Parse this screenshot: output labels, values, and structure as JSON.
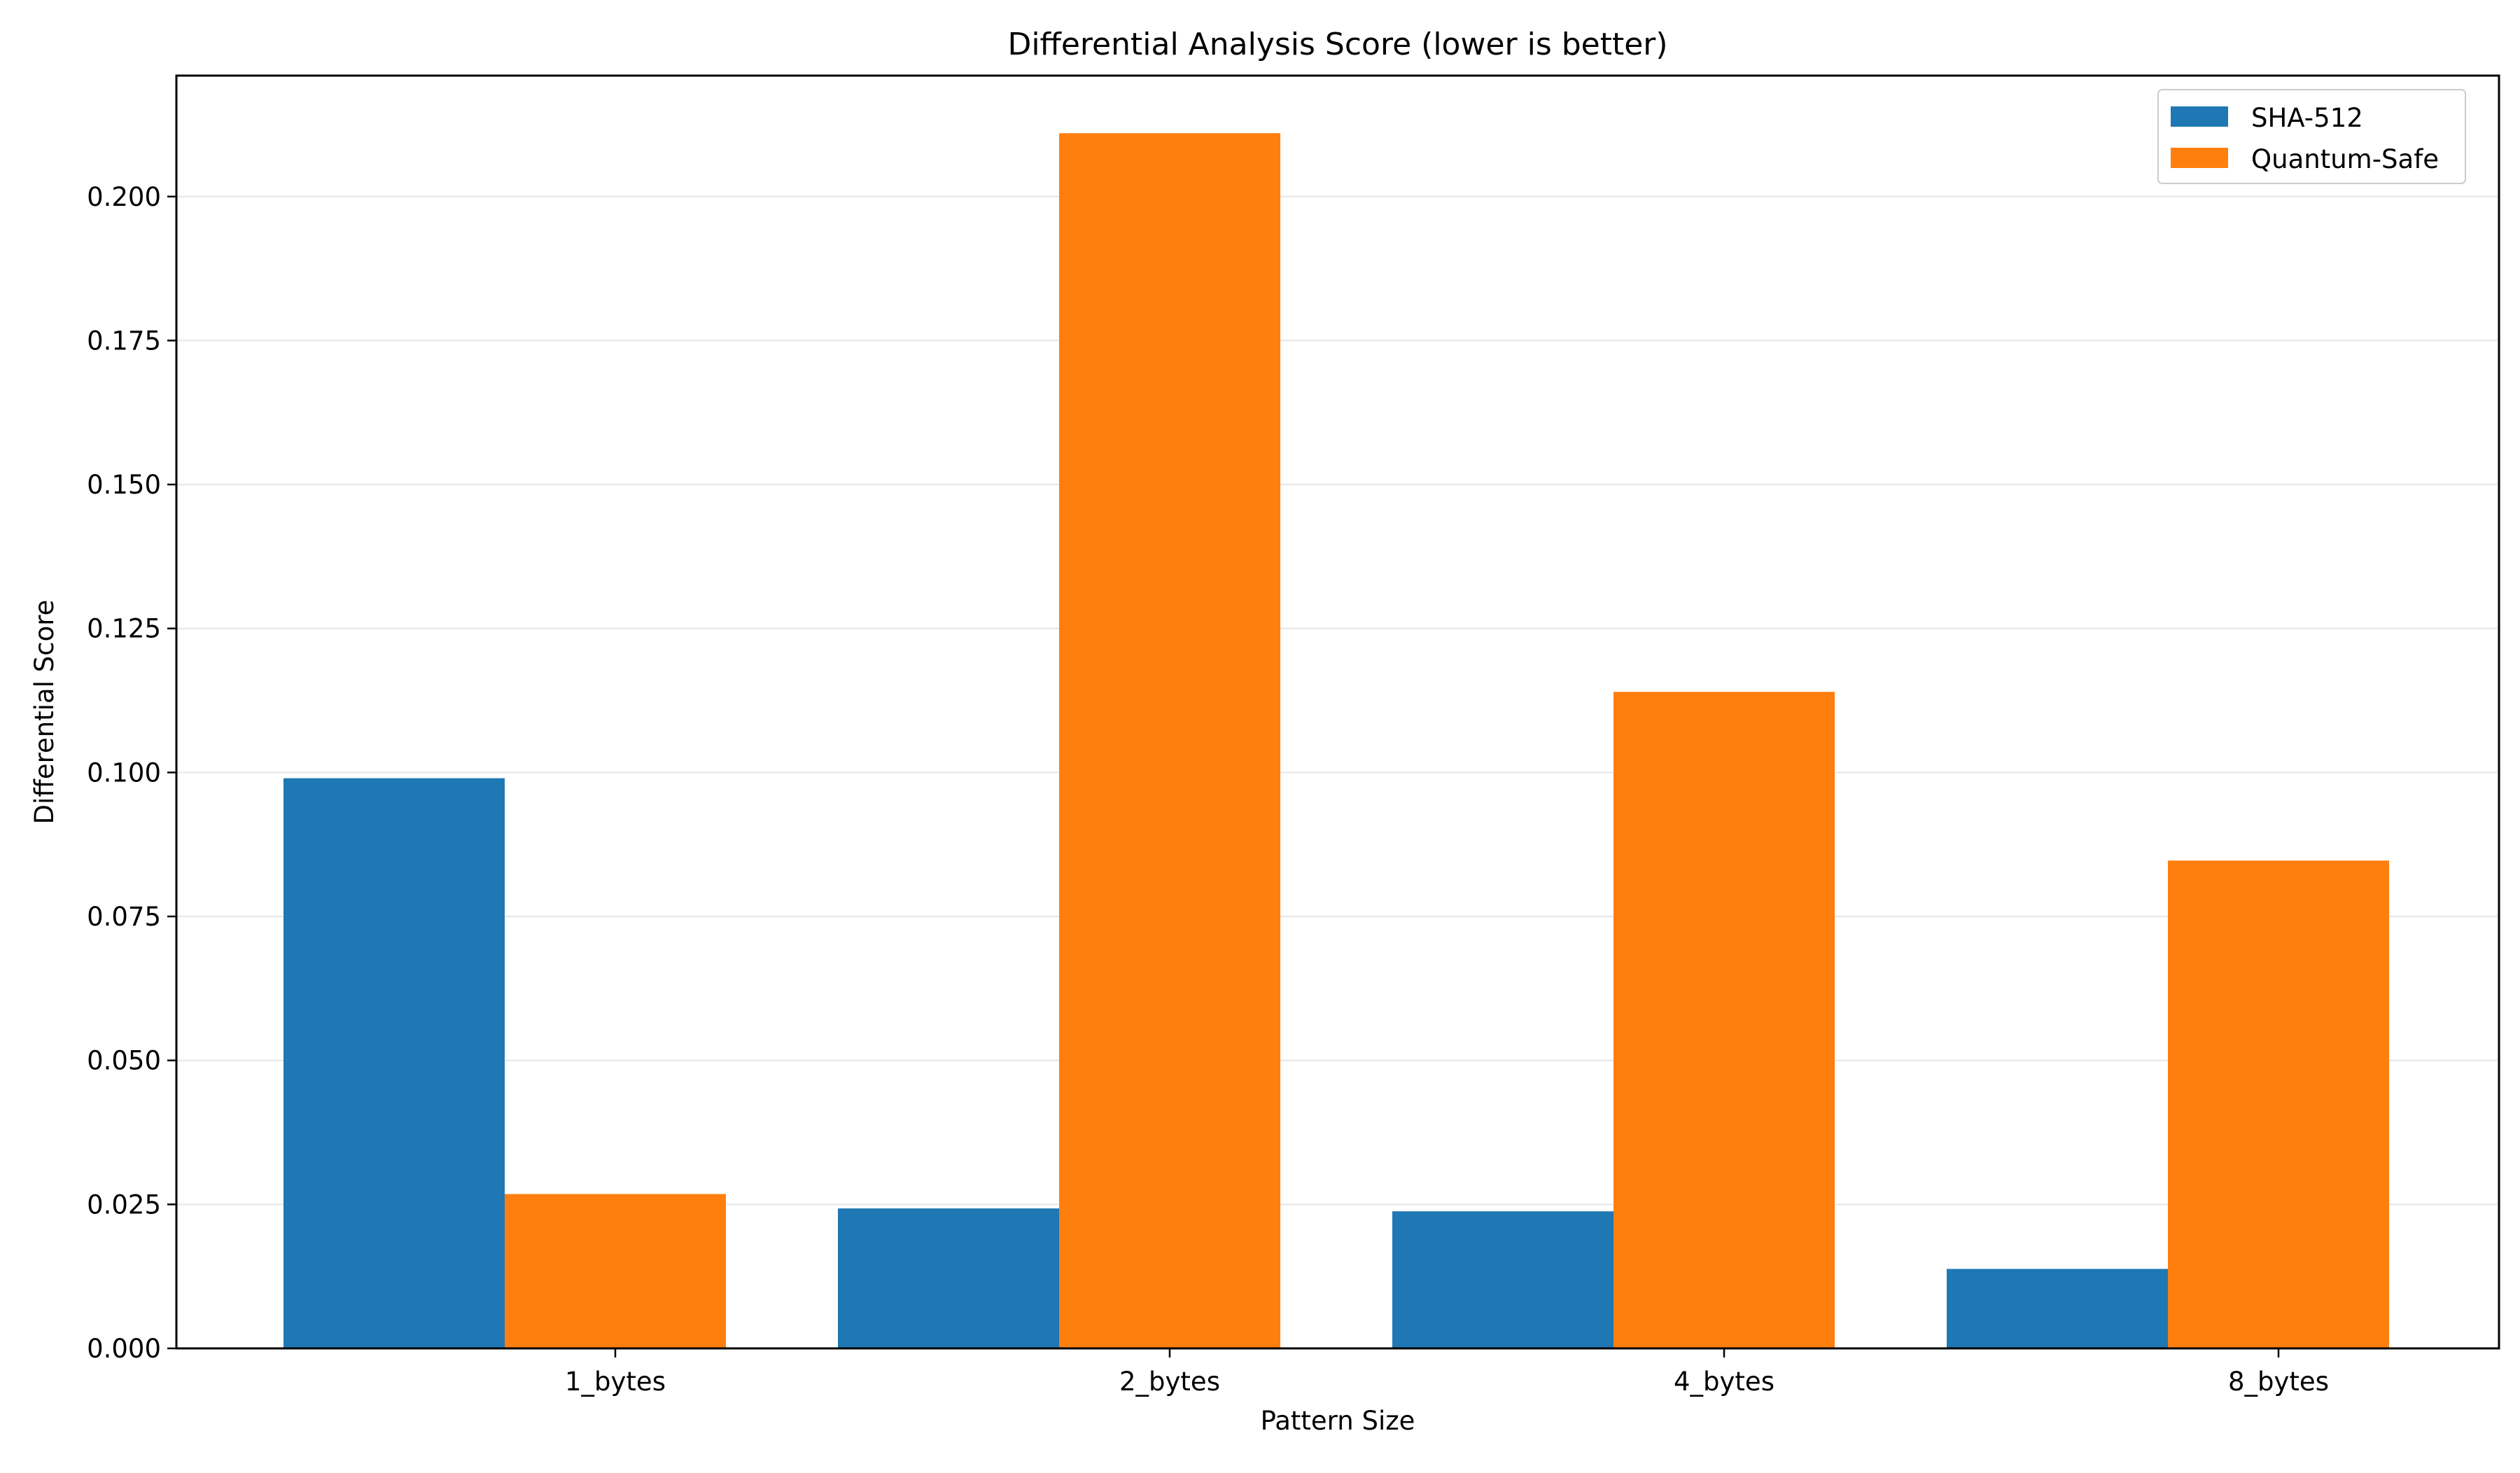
{
  "chart_data": {
    "type": "bar",
    "title": "Differential Analysis Score (lower is better)",
    "xlabel": "Pattern Size",
    "ylabel": "Differential Score",
    "categories": [
      "1_bytes",
      "2_bytes",
      "4_bytes",
      "8_bytes"
    ],
    "series": [
      {
        "name": "SHA-512",
        "color": "#1f77b4",
        "values": [
          0.099,
          0.0243,
          0.0238,
          0.0138
        ]
      },
      {
        "name": "Quantum-Safe",
        "color": "#ff7f0e",
        "values": [
          0.0268,
          0.211,
          0.114,
          0.0847
        ]
      }
    ],
    "ylim": [
      0,
      0.221
    ],
    "yticks": [
      "0.000",
      "0.025",
      "0.050",
      "0.075",
      "0.100",
      "0.125",
      "0.150",
      "0.175",
      "0.200"
    ],
    "ytick_values": [
      0,
      0.025,
      0.05,
      0.075,
      0.1,
      0.125,
      0.15,
      0.175,
      0.2
    ],
    "grid": "y-axis, light gray",
    "legend_position": "top-right"
  }
}
